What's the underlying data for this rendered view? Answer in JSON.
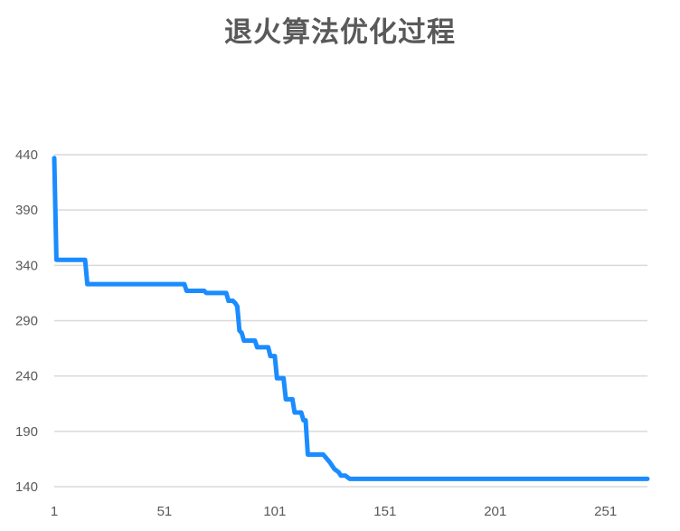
{
  "chart_data": {
    "type": "line",
    "title": "退火算法优化过程",
    "xlabel": "",
    "ylabel": "",
    "xlim": [
      1,
      270
    ],
    "ylim": [
      140,
      440
    ],
    "x_ticks": [
      1,
      51,
      101,
      151,
      201,
      251
    ],
    "y_ticks": [
      140,
      190,
      240,
      290,
      340,
      390,
      440
    ],
    "grid": "horizontal",
    "legend": "none",
    "colors": {
      "line": "#1a8cff",
      "grid": "#d9d9d9",
      "text": "#595959"
    },
    "series": [
      {
        "points": [
          [
            1,
            437
          ],
          [
            2,
            345
          ],
          [
            15,
            345
          ],
          [
            16,
            323
          ],
          [
            60,
            323
          ],
          [
            61,
            317
          ],
          [
            69,
            317
          ],
          [
            70,
            315
          ],
          [
            79,
            315
          ],
          [
            80,
            308
          ],
          [
            82,
            308
          ],
          [
            83,
            306
          ],
          [
            84,
            303
          ],
          [
            85,
            281
          ],
          [
            86,
            279
          ],
          [
            87,
            272
          ],
          [
            92,
            272
          ],
          [
            93,
            266
          ],
          [
            98,
            266
          ],
          [
            99,
            258
          ],
          [
            101,
            258
          ],
          [
            102,
            238
          ],
          [
            105,
            238
          ],
          [
            106,
            219
          ],
          [
            109,
            219
          ],
          [
            110,
            207
          ],
          [
            113,
            207
          ],
          [
            114,
            200
          ],
          [
            115,
            200
          ],
          [
            116,
            169
          ],
          [
            123,
            169
          ],
          [
            126,
            162
          ],
          [
            128,
            156
          ],
          [
            130,
            153
          ],
          [
            131,
            150
          ],
          [
            133,
            150
          ],
          [
            135,
            147
          ],
          [
            270,
            147
          ]
        ]
      }
    ]
  }
}
